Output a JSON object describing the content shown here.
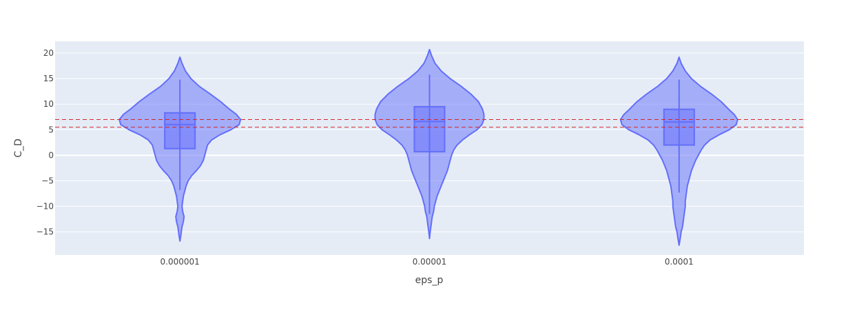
{
  "chart_data": {
    "type": "violin",
    "title": "",
    "xlabel": "eps_p",
    "ylabel": "C_D",
    "categories": [
      "0.000001",
      "0.00001",
      "0.0001"
    ],
    "ylim": [
      -19.5,
      22.3
    ],
    "y_ticks": [
      20,
      15,
      10,
      5,
      0,
      -5,
      -10,
      -15
    ],
    "y_tick_labels": [
      "20",
      "15",
      "10",
      "5",
      "0",
      "−5",
      "−10",
      "−15"
    ],
    "grid": true,
    "reference_lines": [
      7.0,
      5.5
    ],
    "violins": [
      {
        "category": "0.000001",
        "q1": 1.3,
        "median": 6.0,
        "q3": 8.3,
        "whisker_low": -6.8,
        "whisker_high": 14.8,
        "profile": [
          [
            19.2,
            0
          ],
          [
            18.0,
            3
          ],
          [
            16.5,
            8
          ],
          [
            15.0,
            16
          ],
          [
            13.5,
            28
          ],
          [
            12.0,
            44
          ],
          [
            10.5,
            59
          ],
          [
            9.0,
            72
          ],
          [
            8.0,
            82
          ],
          [
            7.0,
            88
          ],
          [
            6.0,
            86
          ],
          [
            5.0,
            74
          ],
          [
            4.0,
            58
          ],
          [
            3.0,
            46
          ],
          [
            2.0,
            40
          ],
          [
            1.0,
            38
          ],
          [
            0.0,
            36
          ],
          [
            -1.0,
            34
          ],
          [
            -2.0,
            30
          ],
          [
            -3.0,
            24
          ],
          [
            -4.0,
            17
          ],
          [
            -5.0,
            12
          ],
          [
            -6.0,
            9
          ],
          [
            -7.0,
            7
          ],
          [
            -8.0,
            5
          ],
          [
            -9.0,
            4
          ],
          [
            -10.0,
            3
          ],
          [
            -11.0,
            4
          ],
          [
            -12.0,
            6
          ],
          [
            -13.0,
            5
          ],
          [
            -14.0,
            3
          ],
          [
            -15.0,
            2
          ],
          [
            -16.0,
            1
          ],
          [
            -16.8,
            0
          ]
        ]
      },
      {
        "category": "0.00001",
        "q1": 0.7,
        "median": 6.6,
        "q3": 9.5,
        "whisker_low": -11.5,
        "whisker_high": 15.8,
        "profile": [
          [
            20.7,
            0
          ],
          [
            19.5,
            3
          ],
          [
            18.0,
            8
          ],
          [
            16.5,
            17
          ],
          [
            15.0,
            30
          ],
          [
            13.5,
            46
          ],
          [
            12.0,
            60
          ],
          [
            10.5,
            71
          ],
          [
            9.0,
            77
          ],
          [
            8.0,
            79
          ],
          [
            7.0,
            79
          ],
          [
            6.0,
            76
          ],
          [
            5.0,
            69
          ],
          [
            4.0,
            58
          ],
          [
            3.0,
            48
          ],
          [
            2.0,
            40
          ],
          [
            1.0,
            35
          ],
          [
            0.0,
            32
          ],
          [
            -1.0,
            30
          ],
          [
            -2.0,
            28
          ],
          [
            -3.0,
            26
          ],
          [
            -4.0,
            23
          ],
          [
            -5.0,
            20
          ],
          [
            -6.0,
            17
          ],
          [
            -7.0,
            14
          ],
          [
            -8.0,
            11
          ],
          [
            -9.0,
            9
          ],
          [
            -10.0,
            7
          ],
          [
            -11.0,
            6
          ],
          [
            -12.0,
            4
          ],
          [
            -13.0,
            3
          ],
          [
            -14.0,
            2
          ],
          [
            -15.0,
            1
          ],
          [
            -16.3,
            0
          ]
        ]
      },
      {
        "category": "0.0001",
        "q1": 2.0,
        "median": 6.5,
        "q3": 9.0,
        "whisker_low": -7.3,
        "whisker_high": 14.8,
        "profile": [
          [
            19.2,
            0
          ],
          [
            18.0,
            3
          ],
          [
            16.5,
            9
          ],
          [
            15.0,
            18
          ],
          [
            13.5,
            31
          ],
          [
            12.0,
            47
          ],
          [
            10.5,
            61
          ],
          [
            9.0,
            72
          ],
          [
            8.0,
            80
          ],
          [
            7.0,
            85
          ],
          [
            6.0,
            83
          ],
          [
            5.0,
            73
          ],
          [
            4.0,
            58
          ],
          [
            3.0,
            45
          ],
          [
            2.0,
            37
          ],
          [
            1.0,
            32
          ],
          [
            0.0,
            28
          ],
          [
            -1.0,
            24
          ],
          [
            -2.0,
            21
          ],
          [
            -3.0,
            18
          ],
          [
            -4.0,
            16
          ],
          [
            -5.0,
            14
          ],
          [
            -6.0,
            12
          ],
          [
            -7.0,
            11
          ],
          [
            -8.0,
            10
          ],
          [
            -9.0,
            9
          ],
          [
            -10.0,
            9
          ],
          [
            -11.0,
            8
          ],
          [
            -12.0,
            7
          ],
          [
            -13.0,
            6
          ],
          [
            -14.0,
            5
          ],
          [
            -15.0,
            3
          ],
          [
            -16.0,
            2
          ],
          [
            -17.6,
            0
          ]
        ]
      }
    ],
    "colors": {
      "plot_bg": "#e5ecf6",
      "grid": "#ffffff",
      "violin_fill": "#636efa",
      "violin_line": "#636efa",
      "reference_line": "#d62728",
      "text": "#444444"
    }
  }
}
